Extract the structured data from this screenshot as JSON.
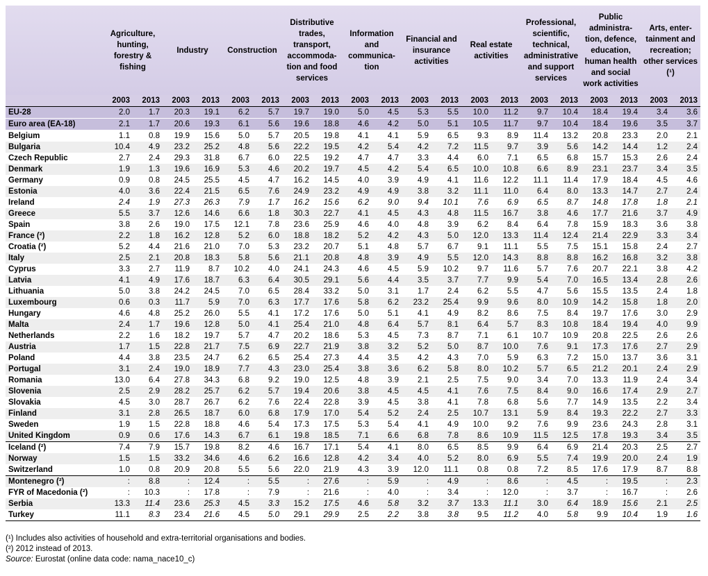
{
  "columns": [
    {
      "label": "Agriculture, hunting, forestry & fishing"
    },
    {
      "label": "Industry"
    },
    {
      "label": "Construction"
    },
    {
      "label": "Distributive trades, transport, accommoda-tion and food services"
    },
    {
      "label": "Information and communica-tion"
    },
    {
      "label": "Financial and insurance activities"
    },
    {
      "label": "Real estate activities"
    },
    {
      "label": "Professional, scientific, technical, administrative and support services"
    },
    {
      "label": "Public administra-tion, defence, education, human health and social work activities"
    },
    {
      "label": "Arts, enter-tainment and recreation; other services (¹)"
    }
  ],
  "years": [
    "2003",
    "2013"
  ],
  "rows": [
    {
      "name": "EU-28",
      "kind": "agg",
      "v": [
        "2.0",
        "1.7",
        "20.3",
        "19.1",
        "6.2",
        "5.7",
        "19.7",
        "19.0",
        "5.0",
        "4.5",
        "5.3",
        "5.5",
        "10.0",
        "11.2",
        "9.7",
        "10.4",
        "18.4",
        "19.4",
        "3.4",
        "3.6"
      ],
      "it": []
    },
    {
      "name": "Euro area (EA-18)",
      "kind": "agg",
      "v": [
        "2.1",
        "1.7",
        "20.6",
        "19.3",
        "6.1",
        "5.6",
        "19.6",
        "18.8",
        "4.6",
        "4.2",
        "5.0",
        "5.1",
        "10.5",
        "11.7",
        "9.7",
        "10.4",
        "18.4",
        "19.6",
        "3.5",
        "3.7"
      ],
      "it": []
    },
    {
      "name": "Belgium",
      "v": [
        "1.1",
        "0.8",
        "19.9",
        "15.6",
        "5.0",
        "5.7",
        "20.5",
        "19.8",
        "4.1",
        "4.1",
        "5.9",
        "6.5",
        "9.3",
        "8.9",
        "11.4",
        "13.2",
        "20.8",
        "23.3",
        "2.0",
        "2.1"
      ],
      "it": []
    },
    {
      "name": "Bulgaria",
      "v": [
        "10.4",
        "4.9",
        "23.2",
        "25.2",
        "4.8",
        "5.6",
        "22.2",
        "19.5",
        "4.2",
        "5.4",
        "4.2",
        "7.2",
        "11.5",
        "9.7",
        "3.9",
        "5.6",
        "14.2",
        "14.4",
        "1.2",
        "2.4"
      ],
      "it": []
    },
    {
      "name": "Czech Republic",
      "v": [
        "2.7",
        "2.4",
        "29.3",
        "31.8",
        "6.7",
        "6.0",
        "22.5",
        "19.2",
        "4.7",
        "4.7",
        "3.3",
        "4.4",
        "6.0",
        "7.1",
        "6.5",
        "6.8",
        "15.7",
        "15.3",
        "2.6",
        "2.4"
      ],
      "it": []
    },
    {
      "name": "Denmark",
      "v": [
        "1.9",
        "1.3",
        "19.6",
        "16.9",
        "5.3",
        "4.6",
        "20.2",
        "19.7",
        "4.5",
        "4.2",
        "5.4",
        "6.5",
        "10.0",
        "10.8",
        "6.6",
        "8.9",
        "23.1",
        "23.7",
        "3.4",
        "3.5"
      ],
      "it": []
    },
    {
      "name": "Germany",
      "v": [
        "0.9",
        "0.8",
        "24.5",
        "25.5",
        "4.5",
        "4.7",
        "16.2",
        "14.5",
        "4.0",
        "3.9",
        "4.9",
        "4.1",
        "11.6",
        "12.2",
        "11.1",
        "11.4",
        "17.9",
        "18.4",
        "4.5",
        "4.6"
      ],
      "it": []
    },
    {
      "name": "Estonia",
      "v": [
        "4.0",
        "3.6",
        "22.4",
        "21.5",
        "6.5",
        "7.6",
        "24.9",
        "23.2",
        "4.9",
        "4.9",
        "3.8",
        "3.2",
        "11.1",
        "11.0",
        "6.4",
        "8.0",
        "13.3",
        "14.7",
        "2.7",
        "2.4"
      ],
      "it": []
    },
    {
      "name": "Ireland",
      "v": [
        "2.4",
        "1.9",
        "27.3",
        "26.3",
        "7.9",
        "1.7",
        "16.2",
        "15.6",
        "6.2",
        "9.0",
        "9.4",
        "10.1",
        "7.6",
        "6.9",
        "6.5",
        "8.7",
        "14.8",
        "17.8",
        "1.8",
        "2.1"
      ],
      "it": [
        0,
        1,
        2,
        3,
        4,
        5,
        6,
        7,
        8,
        9,
        10,
        11,
        12,
        13,
        14,
        15,
        16,
        17,
        18,
        19
      ]
    },
    {
      "name": "Greece",
      "v": [
        "5.5",
        "3.7",
        "12.6",
        "14.6",
        "6.6",
        "1.8",
        "30.3",
        "22.7",
        "4.1",
        "4.5",
        "4.3",
        "4.8",
        "11.5",
        "16.7",
        "3.8",
        "4.6",
        "17.7",
        "21.6",
        "3.7",
        "4.9"
      ],
      "it": []
    },
    {
      "name": "Spain",
      "v": [
        "3.8",
        "2.6",
        "19.0",
        "17.5",
        "12.1",
        "7.8",
        "23.6",
        "25.9",
        "4.6",
        "4.0",
        "4.8",
        "3.9",
        "6.2",
        "8.4",
        "6.4",
        "7.8",
        "15.9",
        "18.3",
        "3.6",
        "3.8"
      ],
      "it": []
    },
    {
      "name": "France (²)",
      "v": [
        "2.2",
        "1.8",
        "16.2",
        "12.8",
        "5.2",
        "6.0",
        "18.8",
        "18.2",
        "5.2",
        "4.2",
        "4.3",
        "5.0",
        "12.0",
        "13.3",
        "11.4",
        "12.4",
        "21.4",
        "22.9",
        "3.3",
        "3.4"
      ],
      "it": []
    },
    {
      "name": "Croatia (²)",
      "v": [
        "5.2",
        "4.4",
        "21.6",
        "21.0",
        "7.0",
        "5.3",
        "23.2",
        "20.7",
        "5.1",
        "4.8",
        "5.7",
        "6.7",
        "9.1",
        "11.1",
        "5.5",
        "7.5",
        "15.1",
        "15.8",
        "2.4",
        "2.7"
      ],
      "it": []
    },
    {
      "name": "Italy",
      "v": [
        "2.5",
        "2.1",
        "20.8",
        "18.3",
        "5.8",
        "5.6",
        "21.1",
        "20.8",
        "4.8",
        "3.9",
        "4.9",
        "5.5",
        "12.0",
        "14.3",
        "8.8",
        "8.8",
        "16.2",
        "16.8",
        "3.2",
        "3.8"
      ],
      "it": []
    },
    {
      "name": "Cyprus",
      "v": [
        "3.3",
        "2.7",
        "11.9",
        "8.7",
        "10.2",
        "4.0",
        "24.1",
        "24.3",
        "4.6",
        "4.5",
        "5.9",
        "10.2",
        "9.7",
        "11.6",
        "5.7",
        "7.6",
        "20.7",
        "22.1",
        "3.8",
        "4.2"
      ],
      "it": []
    },
    {
      "name": "Latvia",
      "v": [
        "4.1",
        "4.9",
        "17.6",
        "18.7",
        "6.3",
        "6.4",
        "30.5",
        "29.1",
        "5.6",
        "4.4",
        "3.5",
        "3.7",
        "7.7",
        "9.9",
        "5.4",
        "7.0",
        "16.5",
        "13.4",
        "2.8",
        "2.6"
      ],
      "it": []
    },
    {
      "name": "Lithuania",
      "v": [
        "5.0",
        "3.8",
        "24.2",
        "24.5",
        "7.0",
        "6.5",
        "28.4",
        "33.2",
        "5.0",
        "3.1",
        "1.7",
        "2.4",
        "6.2",
        "5.5",
        "4.7",
        "5.6",
        "15.5",
        "13.5",
        "2.4",
        "1.8"
      ],
      "it": []
    },
    {
      "name": "Luxembourg",
      "v": [
        "0.6",
        "0.3",
        "11.7",
        "5.9",
        "7.0",
        "6.3",
        "17.7",
        "17.6",
        "5.8",
        "6.2",
        "23.2",
        "25.4",
        "9.9",
        "9.6",
        "8.0",
        "10.9",
        "14.2",
        "15.8",
        "1.8",
        "2.0"
      ],
      "it": []
    },
    {
      "name": "Hungary",
      "v": [
        "4.6",
        "4.8",
        "25.2",
        "26.0",
        "5.5",
        "4.1",
        "17.2",
        "17.6",
        "5.0",
        "5.1",
        "4.1",
        "4.9",
        "8.2",
        "8.6",
        "7.5",
        "8.4",
        "19.7",
        "17.6",
        "3.0",
        "2.9"
      ],
      "it": []
    },
    {
      "name": "Malta",
      "v": [
        "2.4",
        "1.7",
        "19.6",
        "12.8",
        "5.0",
        "4.1",
        "25.4",
        "21.0",
        "4.8",
        "6.4",
        "5.7",
        "8.1",
        "6.4",
        "5.7",
        "8.3",
        "10.8",
        "18.4",
        "19.4",
        "4.0",
        "9.9"
      ],
      "it": []
    },
    {
      "name": "Netherlands",
      "v": [
        "2.2",
        "1.6",
        "18.2",
        "19.7",
        "5.7",
        "4.7",
        "20.2",
        "18.6",
        "5.3",
        "4.5",
        "7.3",
        "8.7",
        "7.1",
        "6.1",
        "10.7",
        "10.9",
        "20.8",
        "22.5",
        "2.6",
        "2.6"
      ],
      "it": []
    },
    {
      "name": "Austria",
      "v": [
        "1.7",
        "1.5",
        "22.8",
        "21.7",
        "7.5",
        "6.9",
        "22.7",
        "21.9",
        "3.8",
        "3.2",
        "5.2",
        "5.0",
        "8.7",
        "10.0",
        "7.6",
        "9.1",
        "17.3",
        "17.6",
        "2.7",
        "2.9"
      ],
      "it": []
    },
    {
      "name": "Poland",
      "v": [
        "4.4",
        "3.8",
        "23.5",
        "24.7",
        "6.2",
        "6.5",
        "25.4",
        "27.3",
        "4.4",
        "3.5",
        "4.2",
        "4.3",
        "7.0",
        "5.9",
        "6.3",
        "7.2",
        "15.0",
        "13.7",
        "3.6",
        "3.1"
      ],
      "it": []
    },
    {
      "name": "Portugal",
      "v": [
        "3.1",
        "2.4",
        "19.0",
        "18.9",
        "7.7",
        "4.3",
        "23.0",
        "25.4",
        "3.8",
        "3.6",
        "6.2",
        "5.8",
        "8.0",
        "10.2",
        "5.7",
        "6.5",
        "21.2",
        "20.1",
        "2.4",
        "2.9"
      ],
      "it": []
    },
    {
      "name": "Romania",
      "v": [
        "13.0",
        "6.4",
        "27.8",
        "34.3",
        "6.8",
        "9.2",
        "19.0",
        "12.5",
        "4.8",
        "3.9",
        "2.1",
        "2.5",
        "7.5",
        "9.0",
        "3.4",
        "7.0",
        "13.3",
        "11.9",
        "2.4",
        "3.4"
      ],
      "it": []
    },
    {
      "name": "Slovenia",
      "v": [
        "2.5",
        "2.9",
        "28.2",
        "25.7",
        "6.2",
        "5.7",
        "19.4",
        "20.6",
        "3.8",
        "4.5",
        "4.5",
        "4.1",
        "7.6",
        "7.5",
        "8.4",
        "9.0",
        "16.6",
        "17.4",
        "2.9",
        "2.7"
      ],
      "it": []
    },
    {
      "name": "Slovakia",
      "v": [
        "4.5",
        "3.0",
        "28.7",
        "26.7",
        "6.2",
        "7.6",
        "22.4",
        "22.8",
        "3.9",
        "4.5",
        "3.8",
        "4.1",
        "7.8",
        "6.8",
        "5.6",
        "7.7",
        "14.9",
        "13.5",
        "2.2",
        "3.4"
      ],
      "it": []
    },
    {
      "name": "Finland",
      "v": [
        "3.1",
        "2.8",
        "26.5",
        "18.7",
        "6.0",
        "6.8",
        "17.9",
        "17.0",
        "5.4",
        "5.2",
        "2.4",
        "2.5",
        "10.7",
        "13.1",
        "5.9",
        "8.4",
        "19.3",
        "22.2",
        "2.7",
        "3.3"
      ],
      "it": []
    },
    {
      "name": "Sweden",
      "v": [
        "1.9",
        "1.5",
        "22.8",
        "18.8",
        "4.6",
        "5.4",
        "17.3",
        "17.5",
        "5.3",
        "5.4",
        "4.1",
        "4.9",
        "10.0",
        "9.2",
        "7.6",
        "9.9",
        "23.6",
        "24.3",
        "2.8",
        "3.1"
      ],
      "it": []
    },
    {
      "name": "United Kingdom",
      "v": [
        "0.9",
        "0.6",
        "17.6",
        "14.3",
        "6.7",
        "6.1",
        "19.8",
        "18.5",
        "7.1",
        "6.6",
        "6.8",
        "7.8",
        "8.6",
        "10.9",
        "11.5",
        "12.5",
        "17.8",
        "19.3",
        "3.4",
        "3.5"
      ],
      "it": []
    },
    {
      "name": "Iceland (²)",
      "kind": "sep",
      "v": [
        "7.4",
        "7.9",
        "15.7",
        "19.8",
        "8.2",
        "4.6",
        "16.7",
        "17.1",
        "5.4",
        "4.1",
        "8.0",
        "6.5",
        "8.5",
        "9.9",
        "6.4",
        "6.9",
        "21.4",
        "20.3",
        "2.5",
        "2.7"
      ],
      "it": []
    },
    {
      "name": "Norway",
      "v": [
        "1.5",
        "1.5",
        "33.2",
        "34.6",
        "4.6",
        "6.2",
        "16.6",
        "12.8",
        "4.2",
        "3.4",
        "4.0",
        "5.2",
        "8.0",
        "6.9",
        "5.5",
        "7.4",
        "19.9",
        "20.0",
        "2.4",
        "1.9"
      ],
      "it": []
    },
    {
      "name": "Switzerland",
      "v": [
        "1.0",
        "0.8",
        "20.9",
        "20.8",
        "5.5",
        "5.6",
        "22.0",
        "21.9",
        "4.3",
        "3.9",
        "12.0",
        "11.1",
        "0.8",
        "0.8",
        "7.2",
        "8.5",
        "17.6",
        "17.9",
        "8.7",
        "8.8"
      ],
      "it": []
    },
    {
      "name": "Montenegro (²)",
      "kind": "sep",
      "v": [
        ":",
        "8.8",
        ":",
        "12.4",
        ":",
        "5.5",
        ":",
        "27.6",
        ":",
        "5.9",
        ":",
        "4.9",
        ":",
        "8.6",
        ":",
        "4.5",
        ":",
        "19.5",
        ":",
        "2.3"
      ],
      "it": []
    },
    {
      "name": "FYR of Macedonia (²)",
      "v": [
        ":",
        "10.3",
        ":",
        "17.8",
        ":",
        "7.9",
        ":",
        "21.6",
        ":",
        "4.0",
        ":",
        "3.4",
        ":",
        "12.0",
        ":",
        "3.7",
        ":",
        "16.7",
        ":",
        "2.6"
      ],
      "it": []
    },
    {
      "name": "Serbia",
      "v": [
        "13.3",
        "11.4",
        "23.6",
        "25.3",
        "4.5",
        "3.3",
        "15.2",
        "17.5",
        "4.6",
        "5.8",
        "3.2",
        "3.7",
        "13.3",
        "11.1",
        "3.0",
        "6.4",
        "18.9",
        "15.6",
        "2.1",
        "2.5"
      ],
      "it": [
        1,
        3,
        5,
        7,
        9,
        11,
        13,
        15,
        17,
        19
      ]
    },
    {
      "name": "Turkey",
      "kind": "last",
      "v": [
        "11.1",
        "8.3",
        "23.4",
        "21.6",
        "4.5",
        "5.0",
        "29.1",
        "29.9",
        "2.5",
        "2.2",
        "3.8",
        "3.8",
        "9.5",
        "11.2",
        "4.0",
        "5.8",
        "9.9",
        "10.4",
        "1.9",
        "1.6"
      ],
      "it": [
        1,
        3,
        5,
        7,
        9,
        11,
        13,
        15,
        17,
        19
      ]
    }
  ],
  "notes": {
    "n1": "(¹) Includes also activities of household and extra-territorial organisations and bodies.",
    "n2": "(²) 2012 instead of 2013.",
    "source_label": "Source:",
    "source_text": " Eurostat (online data code: nama_nace10_c)"
  },
  "colors": {
    "header_bg": "#d6cee6",
    "aggregate_bg": "#c6bedc",
    "stripe_bg": "#eeeeee"
  }
}
